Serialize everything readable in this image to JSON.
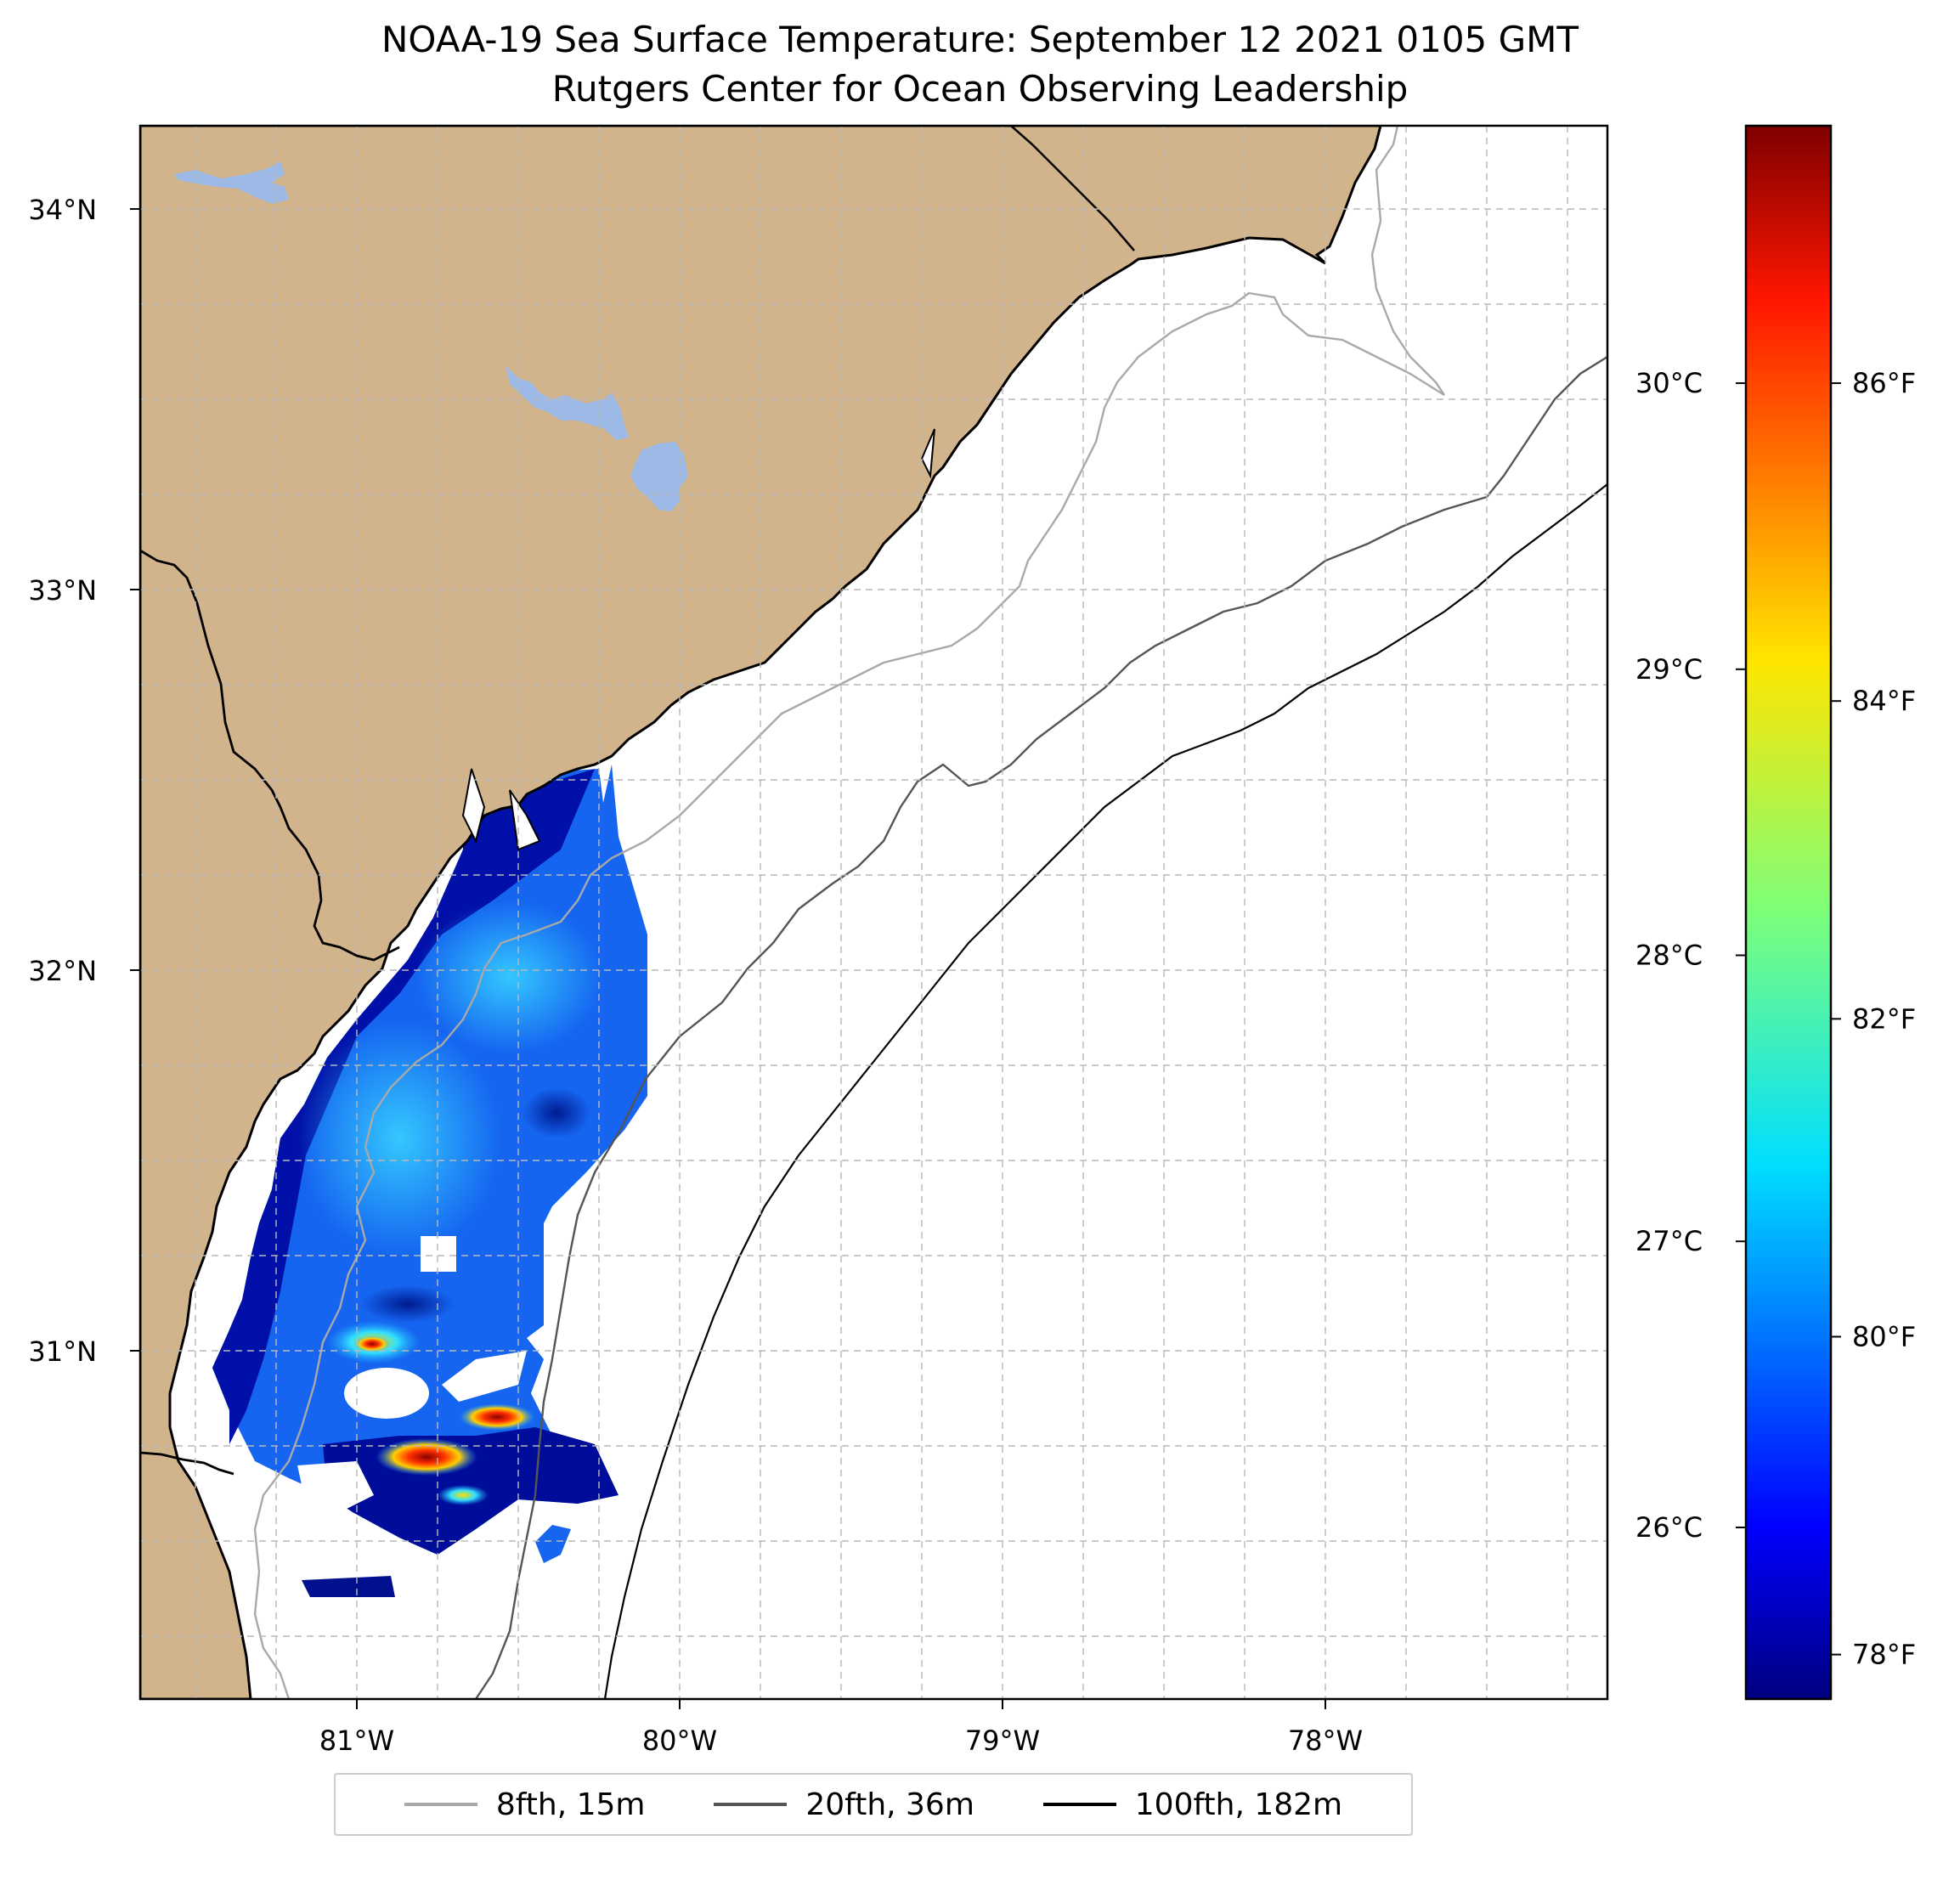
{
  "title": {
    "line1": "NOAA-19 Sea Surface Temperature: September 12 2021 0105 GMT",
    "line2": "Rutgers Center for Ocean Observing Leadership"
  },
  "map": {
    "lon_range": [
      -81.68,
      -77.13
    ],
    "lat_range": [
      30.22,
      34.22
    ],
    "lat_ticks": [
      {
        "value": 34,
        "label": "34°N"
      },
      {
        "value": 33,
        "label": "33°N"
      },
      {
        "value": 32,
        "label": "32°N"
      },
      {
        "value": 31,
        "label": "31°N"
      }
    ],
    "lon_ticks": [
      {
        "value": -81,
        "label": "81°W"
      },
      {
        "value": -80,
        "label": "80°W"
      },
      {
        "value": -79,
        "label": "79°W"
      },
      {
        "value": -78,
        "label": "78°W"
      }
    ],
    "land_color": "#d2b48c",
    "water_color": "#9db9e6",
    "grid": "dashed, 0.25° spacing"
  },
  "colorbar": {
    "colormap": "jet",
    "range_c": [
      25.4,
      30.9
    ],
    "celsius_ticks": [
      {
        "value": 26,
        "label": "26°C"
      },
      {
        "value": 27,
        "label": "27°C"
      },
      {
        "value": 28,
        "label": "28°C"
      },
      {
        "value": 29,
        "label": "29°C"
      },
      {
        "value": 30,
        "label": "30°C"
      }
    ],
    "fahrenheit_ticks": [
      {
        "value": 78,
        "label": "78°F"
      },
      {
        "value": 80,
        "label": "80°F"
      },
      {
        "value": 82,
        "label": "82°F"
      },
      {
        "value": 84,
        "label": "84°F"
      },
      {
        "value": 86,
        "label": "86°F"
      }
    ]
  },
  "legend": {
    "items": [
      {
        "label": "8fth, 15m",
        "color": "#a9a9a9"
      },
      {
        "label": "20fth, 36m",
        "color": "#555555"
      },
      {
        "label": "100fth, 182m",
        "color": "#000000"
      }
    ]
  }
}
